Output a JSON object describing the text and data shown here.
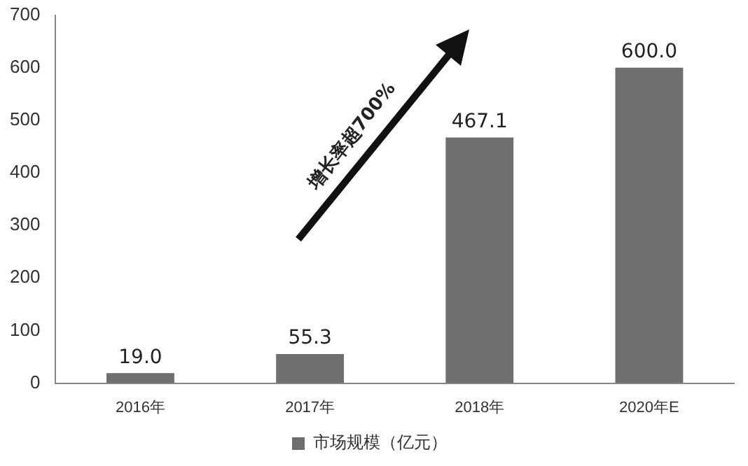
{
  "chart_data": {
    "type": "bar",
    "categories": [
      "2016年",
      "2017年",
      "2018年",
      "2020年E"
    ],
    "series": [
      {
        "name": "市场规模（亿元）",
        "color": "#6f6f6f",
        "values": [
          19.0,
          55.3,
          467.1,
          600.0
        ]
      }
    ],
    "value_labels": [
      "19.0",
      "55.3",
      "467.1",
      "600.0"
    ],
    "ylim": [
      0,
      700
    ],
    "yticks": [
      0,
      100,
      200,
      300,
      400,
      500,
      600,
      700
    ],
    "grid": false,
    "legend": "bottom",
    "annotations": [
      "增长率超700%"
    ]
  }
}
